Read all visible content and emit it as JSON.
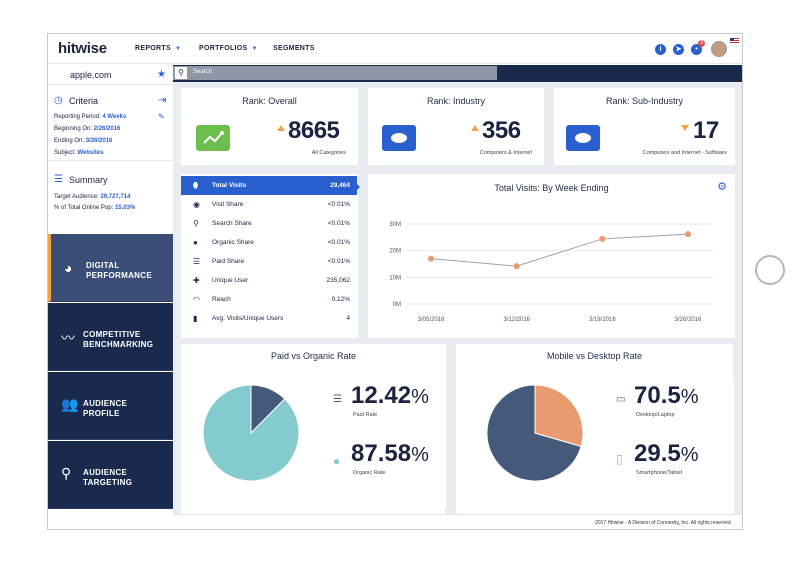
{
  "app": {
    "logo": "hitwise"
  },
  "nav": {
    "reports": "REPORTS",
    "portfolios": "PORTFOLIOS",
    "segments": "SEGMENTS",
    "notification_count": "3"
  },
  "site": {
    "name": "apple.com"
  },
  "search": {
    "placeholder": "Search"
  },
  "criteria": {
    "title": "Criteria",
    "reporting_period_label": "Reporting Period:",
    "reporting_period": "4 Weeks",
    "beginning_label": "Beginning On:",
    "beginning": "2/26/2016",
    "ending_label": "Ending On:",
    "ending": "3/26/2016",
    "subject_label": "Subject:",
    "subject": "Websites"
  },
  "summary": {
    "title": "Summary",
    "target_label": "Target Audience:",
    "target": "29,727,714",
    "pct_label": "% of Total Online Pop:",
    "pct": "15.03%"
  },
  "sidenav": [
    {
      "line1": "DIGITAL",
      "line2": "PERFORMANCE"
    },
    {
      "line1": "COMPETITIVE",
      "line2": "BENCHMARKING"
    },
    {
      "line1": "AUDIENCE",
      "line2": "PROFILE"
    },
    {
      "line1": "AUDIENCE",
      "line2": "TARGETING"
    }
  ],
  "ranks": {
    "overall": {
      "title": "Rank: Overall",
      "value": "8665",
      "sub": "All Categories"
    },
    "industry": {
      "title": "Rank: Industry",
      "value": "356",
      "sub": "Computers & Internet"
    },
    "subindustry": {
      "title": "Rank: Sub-Industry",
      "value": "17",
      "sub": "Computers and Internet - Software"
    }
  },
  "metrics": [
    {
      "label": "Total Visits",
      "value": "29,464",
      "icon": "mouse-icon"
    },
    {
      "label": "Visit Share",
      "value": "<0.01%",
      "icon": "eye-icon"
    },
    {
      "label": "Search Share",
      "value": "<0.01%",
      "icon": "search-icon"
    },
    {
      "label": "Organic Share",
      "value": "<0.01%",
      "icon": "pear-icon"
    },
    {
      "label": "Paid Share",
      "value": "<0.01%",
      "icon": "coins-icon"
    },
    {
      "label": "Unique User",
      "value": "235,062",
      "icon": "puzzle-icon"
    },
    {
      "label": "Reach",
      "value": "0.12%",
      "icon": "wifi-icon"
    },
    {
      "label": "Avg. Visits/Unique Users",
      "value": "4",
      "icon": "bars-icon"
    }
  ],
  "visits_chart": {
    "title": "Total Visits: By Week Ending"
  },
  "paid_organic": {
    "title": "Paid vs Organic Rate",
    "paid_value": "12.42",
    "paid_label": "Paid Rate",
    "organic_value": "87.58",
    "organic_label": "Organic Rate",
    "pct": "%"
  },
  "mobile_desktop": {
    "title": "Mobile vs Desktop Rate",
    "desktop_value": "70.5",
    "desktop_label": "Desktop/Laptop",
    "mobile_value": "29.5",
    "mobile_label": "Smartphone/Tablet",
    "pct": "%"
  },
  "footer": {
    "text": "2017 Hitwise - A Division of Connexity, Inc. All rights reserved."
  },
  "colors": {
    "navy": "#1a2a4f",
    "blue": "#2a5fd0",
    "orange": "#f2a245",
    "teal": "#84cbd0",
    "slate": "#455a7a",
    "salmon": "#e99a6e"
  },
  "chart_data": [
    {
      "type": "line",
      "title": "Total Visits: By Week Ending",
      "x": [
        "3/05/2016",
        "3/12/2016",
        "3/19/2016",
        "3/26/2016"
      ],
      "series": [
        {
          "values": [
            17000000,
            14200000,
            24400000,
            26200000
          ]
        }
      ],
      "yticks": [
        "0M",
        "10M",
        "20M",
        "30M"
      ],
      "ylim": [
        0,
        30000000
      ],
      "grid": true
    },
    {
      "type": "pie",
      "title": "Paid vs Organic Rate",
      "categories": [
        "Paid Rate",
        "Organic Rate"
      ],
      "values": [
        12.42,
        87.58
      ]
    },
    {
      "type": "pie",
      "title": "Mobile vs Desktop Rate",
      "categories": [
        "Desktop/Laptop",
        "Smartphone/Tablet"
      ],
      "values": [
        70.5,
        29.5
      ]
    }
  ]
}
